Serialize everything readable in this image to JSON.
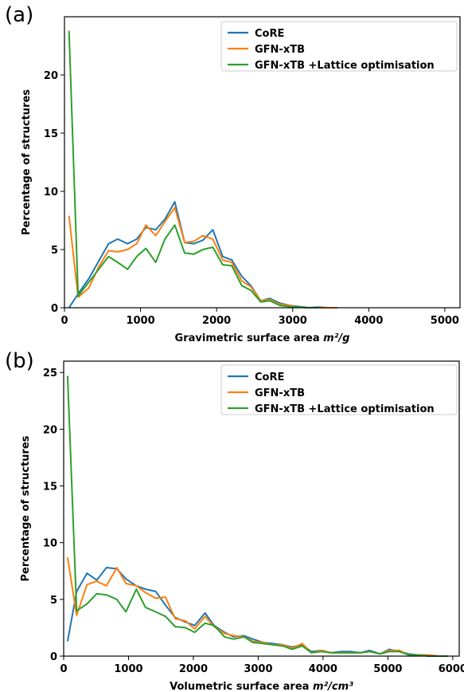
{
  "chart_data": [
    {
      "type": "line",
      "panel_label": "(a)",
      "xlabel": "Gravimetric surface area",
      "xlabel_unit": "m²/g",
      "ylabel": "Percentage of structures",
      "xlim": [
        0,
        5200
      ],
      "ylim": [
        0,
        25
      ],
      "xticks": [
        0,
        1000,
        2000,
        3000,
        4000,
        5000
      ],
      "yticks": [
        0,
        5,
        10,
        15,
        20
      ],
      "legend_position": "top-right",
      "grid": false,
      "series": [
        {
          "name": "CoRE",
          "color": "#1f77b4",
          "x": [
            60,
            180,
            320,
            450,
            580,
            700,
            830,
            950,
            1070,
            1200,
            1320,
            1450,
            1580,
            1700,
            1820,
            1950,
            2080,
            2200,
            2330,
            2450,
            2580,
            2700,
            2830,
            2960,
            3080,
            3210,
            3340,
            3460,
            3590
          ],
          "y": [
            0,
            1.2,
            2.5,
            4.0,
            5.5,
            5.9,
            5.5,
            5.9,
            6.9,
            6.7,
            7.6,
            9.1,
            5.6,
            5.5,
            5.8,
            6.7,
            4.4,
            4.1,
            2.7,
            1.9,
            0.6,
            0.8,
            0.4,
            0.2,
            0.1,
            0.0,
            0.05,
            0.0,
            0.0
          ]
        },
        {
          "name": "GFN-xTB",
          "color": "#ff7f0e",
          "x": [
            60,
            180,
            320,
            450,
            580,
            700,
            830,
            950,
            1070,
            1200,
            1320,
            1450,
            1580,
            1700,
            1820,
            1950,
            2080,
            2200,
            2330,
            2450,
            2580,
            2700,
            2830,
            2960,
            3080,
            3210,
            3340,
            3460,
            3590
          ],
          "y": [
            7.9,
            0.9,
            1.7,
            3.5,
            4.9,
            4.8,
            5.0,
            5.5,
            7.1,
            6.2,
            7.4,
            8.6,
            5.6,
            5.7,
            6.2,
            5.9,
            4.1,
            3.9,
            2.3,
            1.8,
            0.6,
            0.7,
            0.3,
            0.2,
            0.05,
            0.0,
            0.0,
            0.0,
            0.0
          ]
        },
        {
          "name": "GFN-xTB +Lattice optimisation",
          "color": "#2ca02c",
          "x": [
            60,
            180,
            320,
            450,
            580,
            700,
            830,
            950,
            1070,
            1200,
            1320,
            1450,
            1580,
            1700,
            1820,
            1950,
            2080,
            2200,
            2330,
            2450,
            2580,
            2700,
            2830,
            2960,
            3080,
            3210,
            3340
          ],
          "y": [
            23.8,
            1.0,
            2.2,
            3.3,
            4.4,
            3.9,
            3.3,
            4.4,
            5.1,
            3.9,
            5.9,
            7.1,
            4.7,
            4.6,
            5.0,
            5.2,
            3.7,
            3.6,
            1.9,
            1.5,
            0.5,
            0.6,
            0.2,
            0.1,
            0.05,
            0.0,
            0.0
          ]
        }
      ]
    },
    {
      "type": "line",
      "panel_label": "(b)",
      "xlabel": "Volumetric surface area",
      "xlabel_unit": "m²/cm³",
      "ylabel": "Percentage of structures",
      "xlim": [
        0,
        6100
      ],
      "ylim": [
        0,
        26
      ],
      "xticks": [
        0,
        1000,
        2000,
        3000,
        4000,
        5000,
        6000
      ],
      "yticks": [
        0,
        5,
        10,
        15,
        20,
        25
      ],
      "legend_position": "top-right",
      "grid": false,
      "series": [
        {
          "name": "CoRE",
          "color": "#1f77b4",
          "x": [
            60,
            200,
            360,
            510,
            660,
            820,
            960,
            1120,
            1260,
            1420,
            1570,
            1720,
            1880,
            2020,
            2180,
            2320,
            2480,
            2620,
            2780,
            2920,
            3080,
            3220,
            3380,
            3520,
            3680,
            3820,
            3980,
            4120,
            4280,
            4420,
            4580,
            4720,
            4880,
            5020,
            5180,
            5320,
            5480,
            5620,
            5780,
            5920
          ],
          "y": [
            1.3,
            5.7,
            7.3,
            6.7,
            7.8,
            7.7,
            6.8,
            6.2,
            5.9,
            5.7,
            4.5,
            3.4,
            3.0,
            2.7,
            3.8,
            2.7,
            2.1,
            1.7,
            1.8,
            1.5,
            1.2,
            1.1,
            1.0,
            0.8,
            1.0,
            0.4,
            0.5,
            0.3,
            0.4,
            0.4,
            0.3,
            0.5,
            0.2,
            0.6,
            0.4,
            0.2,
            0.1,
            0.1,
            0.0,
            0.0
          ]
        },
        {
          "name": "GFN-xTB",
          "color": "#ff7f0e",
          "x": [
            60,
            200,
            360,
            510,
            660,
            820,
            960,
            1120,
            1260,
            1420,
            1570,
            1720,
            1880,
            2020,
            2180,
            2320,
            2480,
            2620,
            2780,
            2920,
            3080,
            3220,
            3380,
            3520,
            3680,
            3820,
            3980,
            4120,
            4280,
            4420,
            4580,
            4720,
            4880,
            5020,
            5180,
            5320,
            5480,
            5620,
            5780,
            5920
          ],
          "y": [
            8.7,
            3.6,
            6.3,
            6.6,
            6.2,
            7.8,
            6.4,
            6.2,
            5.6,
            5.1,
            5.2,
            3.3,
            3.1,
            2.4,
            3.5,
            2.6,
            2.0,
            1.8,
            1.7,
            1.3,
            1.2,
            1.0,
            1.0,
            0.7,
            1.1,
            0.3,
            0.5,
            0.3,
            0.3,
            0.3,
            0.3,
            0.4,
            0.2,
            0.5,
            0.5,
            0.1,
            0.1,
            0.1,
            0.0,
            0.0
          ]
        },
        {
          "name": "GFN-xTB +Lattice optimisation",
          "color": "#2ca02c",
          "x": [
            60,
            200,
            360,
            510,
            660,
            820,
            960,
            1120,
            1260,
            1420,
            1570,
            1720,
            1880,
            2020,
            2180,
            2320,
            2480,
            2620,
            2780,
            2920,
            3080,
            3220,
            3380,
            3520,
            3680,
            3820,
            3980,
            4120,
            4280,
            4420,
            4580,
            4720,
            4880,
            5020,
            5180,
            5320,
            5480,
            5620,
            5780,
            5920
          ],
          "y": [
            24.7,
            4.0,
            4.6,
            5.5,
            5.4,
            5.0,
            3.9,
            5.9,
            4.3,
            3.9,
            3.5,
            2.6,
            2.5,
            2.1,
            2.9,
            2.7,
            1.7,
            1.5,
            1.7,
            1.2,
            1.1,
            1.0,
            0.9,
            0.6,
            0.9,
            0.3,
            0.4,
            0.3,
            0.3,
            0.3,
            0.3,
            0.4,
            0.2,
            0.4,
            0.4,
            0.1,
            0.1,
            0.0,
            0.0,
            0.0
          ]
        }
      ]
    }
  ]
}
